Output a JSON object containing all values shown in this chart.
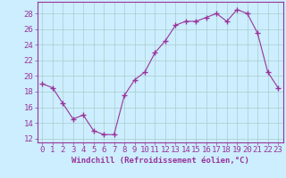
{
  "x": [
    0,
    1,
    2,
    3,
    4,
    5,
    6,
    7,
    8,
    9,
    10,
    11,
    12,
    13,
    14,
    15,
    16,
    17,
    18,
    19,
    20,
    21,
    22,
    23
  ],
  "y": [
    19.0,
    18.5,
    16.5,
    14.5,
    15.0,
    13.0,
    12.5,
    12.5,
    17.5,
    19.5,
    20.5,
    23.0,
    24.5,
    26.5,
    27.0,
    27.0,
    27.5,
    28.0,
    27.0,
    28.5,
    28.0,
    25.5,
    20.5,
    18.5
  ],
  "line_color": "#993399",
  "marker": "+",
  "marker_size": 4,
  "background_color": "#cceeff",
  "grid_color": "#aacccc",
  "xlabel": "Windchill (Refroidissement éolien,°C)",
  "xlabel_fontsize": 6.5,
  "xlabel_color": "#993399",
  "ylabel_ticks": [
    12,
    14,
    16,
    18,
    20,
    22,
    24,
    26,
    28
  ],
  "xlim": [
    -0.5,
    23.5
  ],
  "ylim": [
    11.5,
    29.5
  ],
  "tick_fontsize": 6.5,
  "tick_color": "#993399",
  "spine_color": "#993399"
}
